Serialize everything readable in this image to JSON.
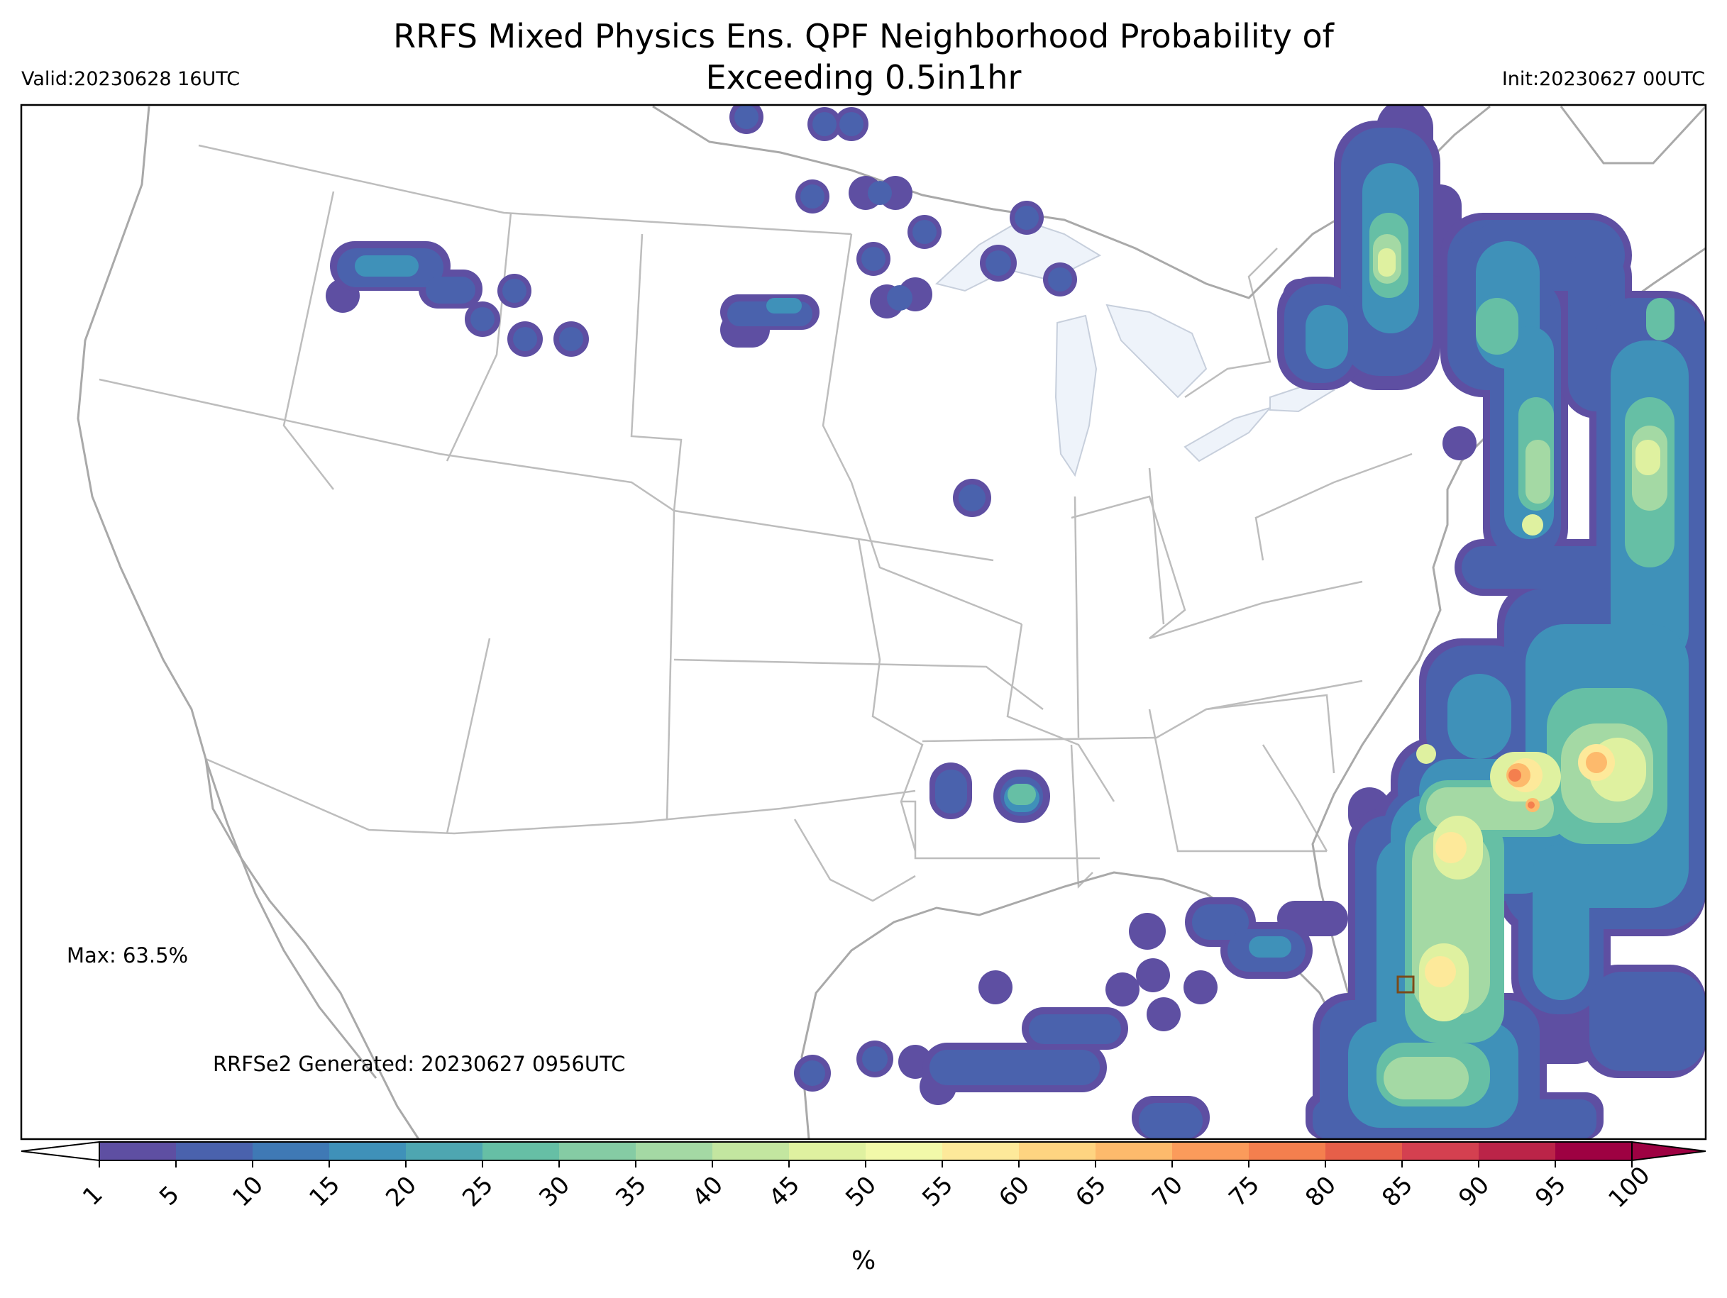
{
  "title": {
    "line1": "RRFS Mixed Physics Ens. QPF Neighborhood Probability of",
    "line2": "Exceeding 0.5in1hr"
  },
  "valid_text": "Valid:20230628 16UTC",
  "init_text": "Init:20230627 00UTC",
  "max_text": "Max: 63.5%",
  "generated_text": "RRFSe2 Generated: 20230627 0956UTC",
  "colorbar": {
    "unit": "%",
    "levels": [
      "1",
      "5",
      "10",
      "15",
      "20",
      "25",
      "30",
      "35",
      "40",
      "45",
      "50",
      "55",
      "60",
      "65",
      "70",
      "75",
      "80",
      "85",
      "90",
      "95",
      "100"
    ],
    "colors": [
      "#5e4fa2",
      "#4a62ad",
      "#3f79b5",
      "#3f91b9",
      "#4ea6b1",
      "#66bfa5",
      "#85cca4",
      "#a4d9a4",
      "#c3e6a0",
      "#dff1a0",
      "#f2f9a9",
      "#fde99a",
      "#fed481",
      "#fdba6c",
      "#fb9b5b",
      "#f47f4e",
      "#e65f49",
      "#d44050",
      "#bb2448",
      "#9e0142"
    ],
    "extend": "both"
  },
  "legend_colors": {
    "low": "#4a62ad",
    "mid": "#66bfa5",
    "high": "#f2f9a9",
    "peak": "#e65f49",
    "lake_fill": "#eef3fa",
    "boundary": "#bdbdbd"
  },
  "marker": {
    "shape": "square",
    "description_value": "max location"
  }
}
